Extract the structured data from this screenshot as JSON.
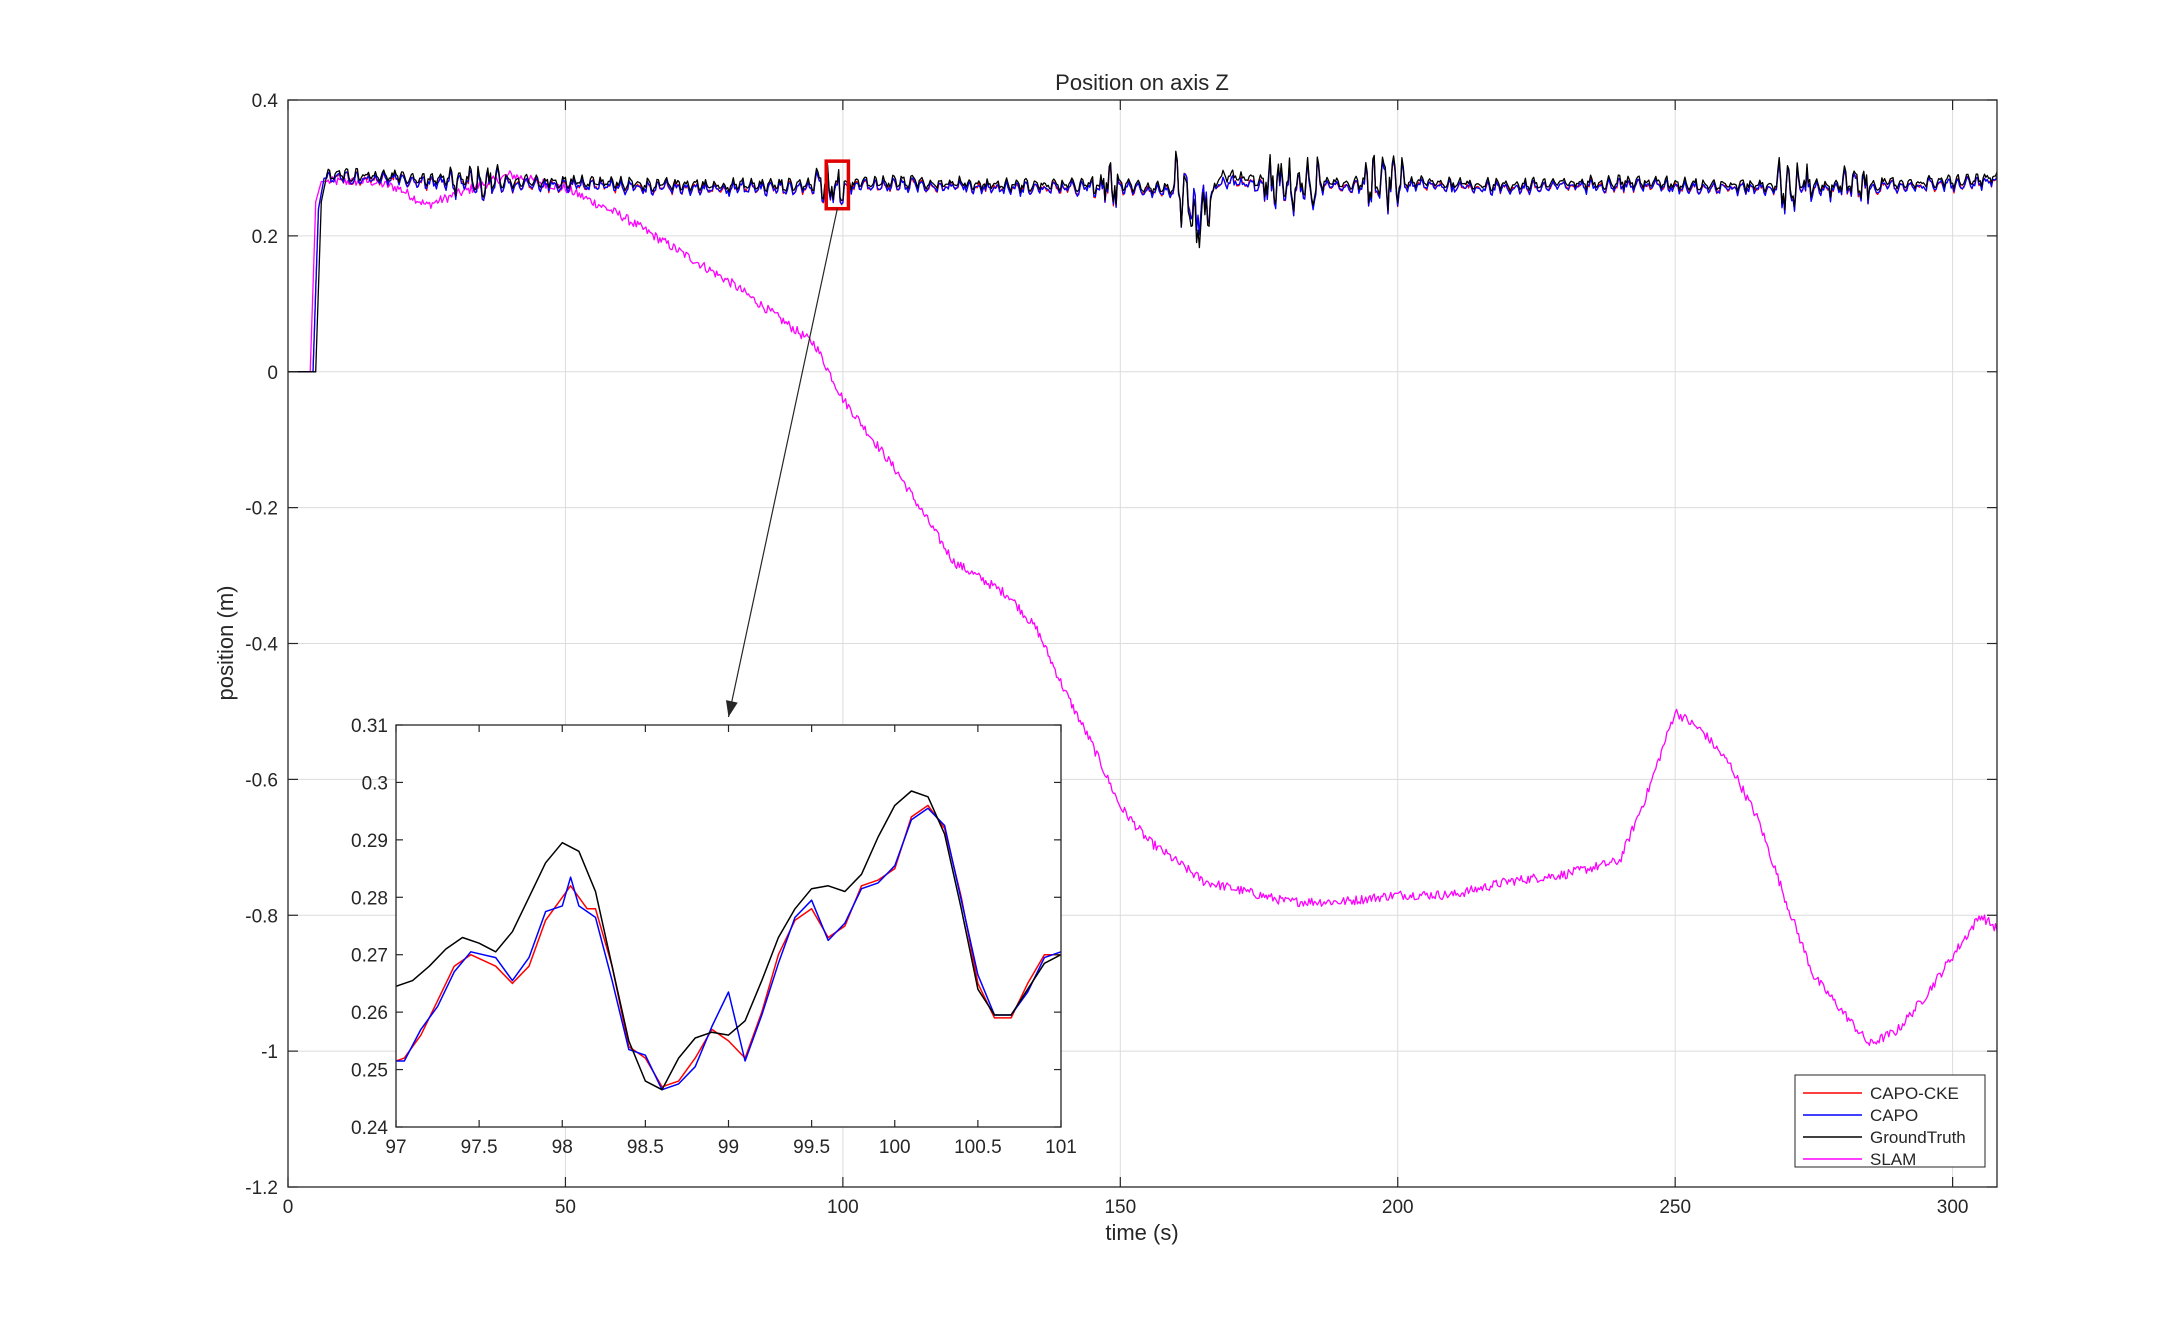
{
  "chart_data": [
    {
      "type": "line",
      "title": "Position on axis Z",
      "xlabel": "time (s)",
      "ylabel": "position (m)",
      "xlim": [
        0,
        308
      ],
      "ylim": [
        -1.2,
        0.4
      ],
      "xticks": [
        "0",
        "50",
        "100",
        "150",
        "200",
        "250",
        "300"
      ],
      "yticks": [
        "0.4",
        "0.2",
        "0",
        "-0.2",
        "-0.4",
        "-0.6",
        "-0.8",
        "-1",
        "-1.2"
      ],
      "grid": true,
      "legend_position": "bottom-right",
      "colors": {
        "CAPO-CKE": "#ff0000",
        "CAPO": "#0000ff",
        "GroundTruth": "#000000",
        "SLAM": "#ff00ff",
        "highlight_box": "#e00000"
      },
      "highlight_region": {
        "x": [
          97,
          101
        ],
        "y": [
          0.24,
          0.31
        ]
      },
      "series": [
        {
          "name": "CAPO-CKE",
          "x": [
            0,
            4.5,
            5.5,
            6.5,
            15,
            30,
            50,
            70,
            90,
            110,
            130,
            150,
            160,
            164,
            168,
            180,
            200,
            220,
            240,
            260,
            280,
            300,
            308
          ],
          "y": [
            0,
            0,
            0.24,
            0.285,
            0.285,
            0.275,
            0.275,
            0.27,
            0.27,
            0.275,
            0.27,
            0.27,
            0.265,
            0.22,
            0.28,
            0.27,
            0.275,
            0.27,
            0.275,
            0.27,
            0.27,
            0.275,
            0.28
          ]
        },
        {
          "name": "CAPO",
          "x": [
            0,
            4.5,
            5.5,
            6.5,
            15,
            30,
            50,
            70,
            90,
            110,
            130,
            150,
            160,
            164,
            168,
            180,
            200,
            220,
            240,
            260,
            280,
            300,
            308
          ],
          "y": [
            0,
            0,
            0.24,
            0.285,
            0.285,
            0.275,
            0.275,
            0.27,
            0.27,
            0.275,
            0.27,
            0.27,
            0.265,
            0.22,
            0.28,
            0.27,
            0.275,
            0.27,
            0.275,
            0.27,
            0.27,
            0.275,
            0.28
          ]
        },
        {
          "name": "GroundTruth",
          "x": [
            0,
            5,
            6,
            7,
            15,
            30,
            50,
            70,
            90,
            110,
            130,
            150,
            160,
            164,
            168,
            180,
            200,
            220,
            240,
            260,
            280,
            300,
            308
          ],
          "y": [
            0,
            0,
            0.25,
            0.29,
            0.29,
            0.28,
            0.28,
            0.275,
            0.275,
            0.28,
            0.275,
            0.275,
            0.27,
            0.2,
            0.29,
            0.275,
            0.28,
            0.275,
            0.28,
            0.275,
            0.275,
            0.28,
            0.285
          ]
        },
        {
          "name": "SLAM",
          "x": [
            0,
            4,
            5,
            6,
            15,
            20,
            25,
            30,
            40,
            50,
            60,
            70,
            80,
            90,
            95,
            100,
            110,
            120,
            130,
            135,
            140,
            145,
            150,
            155,
            160,
            165,
            170,
            180,
            190,
            200,
            210,
            220,
            230,
            240,
            245,
            250,
            255,
            260,
            265,
            270,
            275,
            280,
            285,
            290,
            295,
            300,
            305,
            308
          ],
          "y": [
            0,
            0,
            0.25,
            0.28,
            0.28,
            0.27,
            0.245,
            0.26,
            0.29,
            0.27,
            0.23,
            0.18,
            0.13,
            0.07,
            0.04,
            -0.04,
            -0.15,
            -0.28,
            -0.33,
            -0.38,
            -0.47,
            -0.55,
            -0.64,
            -0.69,
            -0.72,
            -0.75,
            -0.76,
            -0.78,
            -0.78,
            -0.77,
            -0.77,
            -0.75,
            -0.74,
            -0.72,
            -0.62,
            -0.5,
            -0.53,
            -0.58,
            -0.66,
            -0.78,
            -0.89,
            -0.94,
            -0.99,
            -0.97,
            -0.92,
            -0.86,
            -0.8,
            -0.82
          ]
        }
      ]
    },
    {
      "type": "line",
      "title": "",
      "xlabel": "",
      "ylabel": "",
      "xlim": [
        97,
        101
      ],
      "ylim": [
        0.24,
        0.31
      ],
      "xticks": [
        "97",
        "97.5",
        "98",
        "98.5",
        "99",
        "99.5",
        "100",
        "100.5",
        "101"
      ],
      "yticks": [
        "0.31",
        "0.3",
        "0.29",
        "0.28",
        "0.27",
        "0.26",
        "0.25",
        "0.24"
      ],
      "grid": false,
      "series": [
        {
          "name": "CAPO-CKE",
          "x": [
            97,
            97.05,
            97.15,
            97.25,
            97.35,
            97.45,
            97.6,
            97.7,
            97.8,
            97.9,
            98,
            98.05,
            98.1,
            98.15,
            98.2,
            98.3,
            98.4,
            98.5,
            98.6,
            98.7,
            98.8,
            98.9,
            99,
            99.1,
            99.2,
            99.3,
            99.4,
            99.5,
            99.6,
            99.7,
            99.8,
            99.9,
            100,
            100.1,
            100.2,
            100.3,
            100.4,
            100.5,
            100.6,
            100.7,
            100.8,
            100.9,
            101
          ],
          "y": [
            0.2515,
            0.252,
            0.256,
            0.262,
            0.268,
            0.27,
            0.268,
            0.265,
            0.268,
            0.276,
            0.28,
            0.282,
            0.28,
            0.278,
            0.278,
            0.268,
            0.254,
            0.252,
            0.247,
            0.248,
            0.252,
            0.257,
            0.255,
            0.252,
            0.26,
            0.27,
            0.276,
            0.278,
            0.273,
            0.275,
            0.282,
            0.283,
            0.285,
            0.294,
            0.296,
            0.292,
            0.28,
            0.265,
            0.259,
            0.259,
            0.265,
            0.27,
            0.27
          ]
        },
        {
          "name": "CAPO",
          "x": [
            97,
            97.05,
            97.15,
            97.25,
            97.35,
            97.45,
            97.6,
            97.7,
            97.8,
            97.9,
            98,
            98.05,
            98.1,
            98.15,
            98.2,
            98.3,
            98.4,
            98.5,
            98.6,
            98.7,
            98.8,
            98.9,
            99,
            99.1,
            99.2,
            99.3,
            99.4,
            99.5,
            99.6,
            99.7,
            99.8,
            99.9,
            100,
            100.1,
            100.2,
            100.3,
            100.4,
            100.5,
            100.6,
            100.7,
            100.8,
            100.9,
            101
          ],
          "y": [
            0.2515,
            0.2515,
            0.257,
            0.261,
            0.267,
            0.2705,
            0.2695,
            0.2655,
            0.2695,
            0.2775,
            0.2785,
            0.2835,
            0.2785,
            0.2775,
            0.2765,
            0.2655,
            0.2535,
            0.2525,
            0.2465,
            0.2475,
            0.2505,
            0.2575,
            0.2635,
            0.2515,
            0.2595,
            0.2685,
            0.2765,
            0.2795,
            0.2725,
            0.2755,
            0.2815,
            0.2825,
            0.2855,
            0.2935,
            0.2955,
            0.2925,
            0.2795,
            0.2665,
            0.2595,
            0.2595,
            0.2635,
            0.2695,
            0.2705
          ]
        },
        {
          "name": "GroundTruth",
          "x": [
            97,
            97.1,
            97.2,
            97.3,
            97.4,
            97.5,
            97.6,
            97.7,
            97.8,
            97.9,
            98,
            98.1,
            98.2,
            98.3,
            98.4,
            98.5,
            98.6,
            98.7,
            98.8,
            98.9,
            99,
            99.1,
            99.2,
            99.3,
            99.4,
            99.5,
            99.6,
            99.7,
            99.8,
            99.9,
            100,
            100.1,
            100.2,
            100.3,
            100.4,
            100.5,
            100.6,
            100.7,
            100.8,
            100.9,
            101
          ],
          "y": [
            0.2645,
            0.2655,
            0.268,
            0.271,
            0.273,
            0.272,
            0.2705,
            0.274,
            0.28,
            0.286,
            0.2895,
            0.288,
            0.281,
            0.268,
            0.255,
            0.248,
            0.2465,
            0.252,
            0.2555,
            0.2565,
            0.256,
            0.2585,
            0.2655,
            0.273,
            0.278,
            0.2815,
            0.282,
            0.281,
            0.284,
            0.2905,
            0.296,
            0.2985,
            0.2975,
            0.291,
            0.278,
            0.264,
            0.2595,
            0.2595,
            0.264,
            0.2685,
            0.27
          ]
        }
      ]
    }
  ]
}
